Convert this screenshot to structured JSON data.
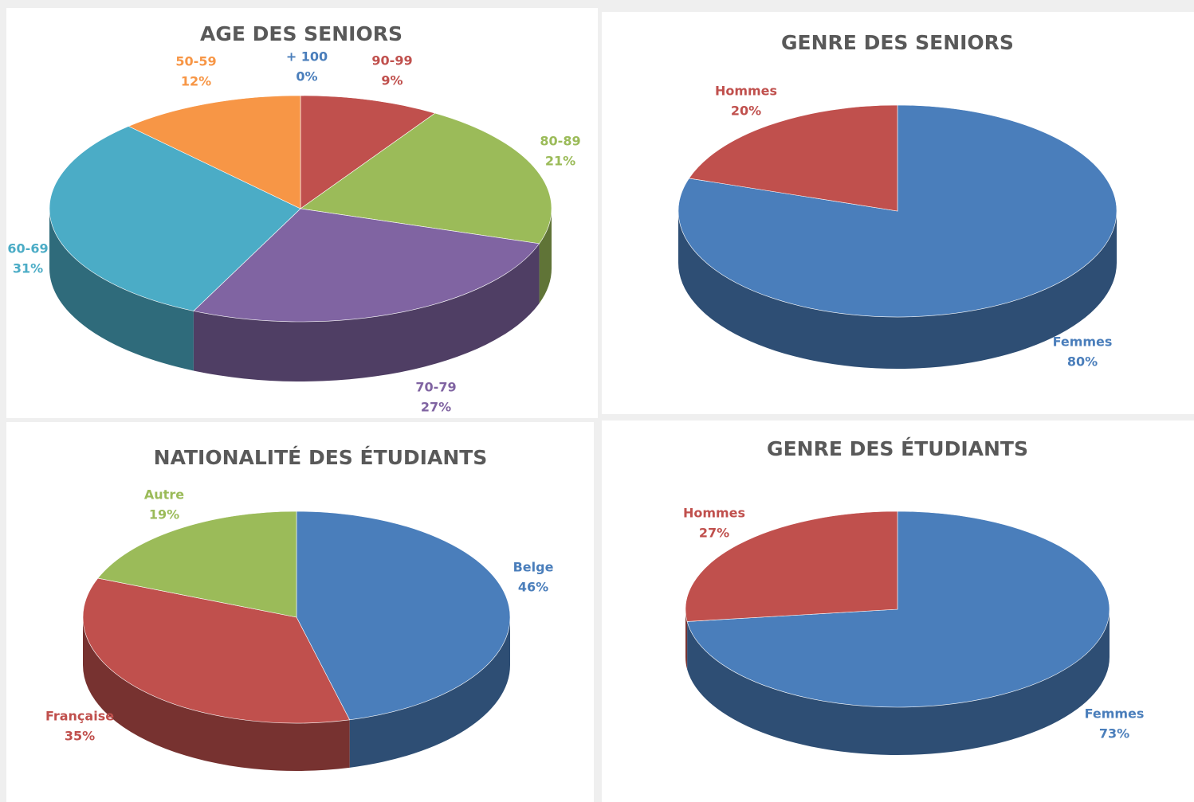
{
  "chart_data": [
    {
      "type": "pie",
      "title": "AGE DES SENIORS",
      "categories": [
        "+ 100",
        "90-99",
        "80-89",
        "70-79",
        "60-69",
        "50-59"
      ],
      "values": [
        0,
        9,
        21,
        27,
        31,
        12
      ],
      "value_labels": [
        "0%",
        "9%",
        "21%",
        "27%",
        "31%",
        "12%"
      ],
      "colors": [
        "#4a7ebb",
        "#c0504d",
        "#9bbb59",
        "#8064a2",
        "#4bacc6",
        "#f79646"
      ]
    },
    {
      "type": "pie",
      "title": "GENRE DES SENIORS",
      "categories": [
        "Femmes",
        "Hommes"
      ],
      "values": [
        80,
        20
      ],
      "value_labels": [
        "80%",
        "20%"
      ],
      "colors": [
        "#4a7ebb",
        "#c0504d"
      ]
    },
    {
      "type": "pie",
      "title": "NATIONALITÉ DES ÉTUDIANTS",
      "categories": [
        "Belge",
        "Française",
        "Autre"
      ],
      "values": [
        46,
        35,
        19
      ],
      "value_labels": [
        "46%",
        "35%",
        "19%"
      ],
      "colors": [
        "#4a7ebb",
        "#c0504d",
        "#9bbb59"
      ]
    },
    {
      "type": "pie",
      "title": "GENRE DES ÉTUDIANTS",
      "categories": [
        "Femmes",
        "Hommes"
      ],
      "values": [
        73,
        27
      ],
      "value_labels": [
        "73%",
        "27%"
      ],
      "colors": [
        "#4a7ebb",
        "#c0504d"
      ]
    }
  ]
}
